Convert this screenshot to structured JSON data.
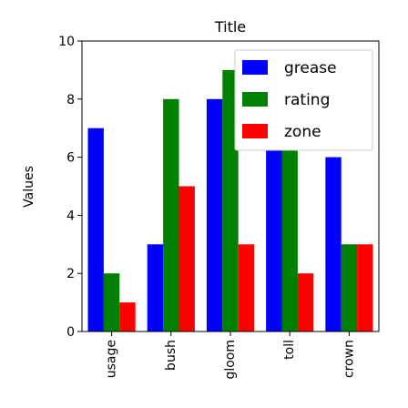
{
  "chart_data": {
    "type": "bar",
    "title": "Title",
    "xlabel": "",
    "ylabel": "Values",
    "categories": [
      "usage",
      "bush",
      "gloom",
      "toll",
      "crown"
    ],
    "series": [
      {
        "name": "grease",
        "color": "#0000ff",
        "values": [
          7,
          3,
          8,
          7,
          6
        ]
      },
      {
        "name": "rating",
        "color": "#008000",
        "values": [
          2,
          8,
          9,
          7,
          3
        ]
      },
      {
        "name": "zone",
        "color": "#ff0000",
        "values": [
          1,
          5,
          3,
          2,
          3
        ]
      }
    ],
    "ylim": [
      0,
      10
    ],
    "yticks": [
      0,
      2,
      4,
      6,
      8,
      10
    ],
    "grid": false,
    "legend_position": "top-right"
  }
}
